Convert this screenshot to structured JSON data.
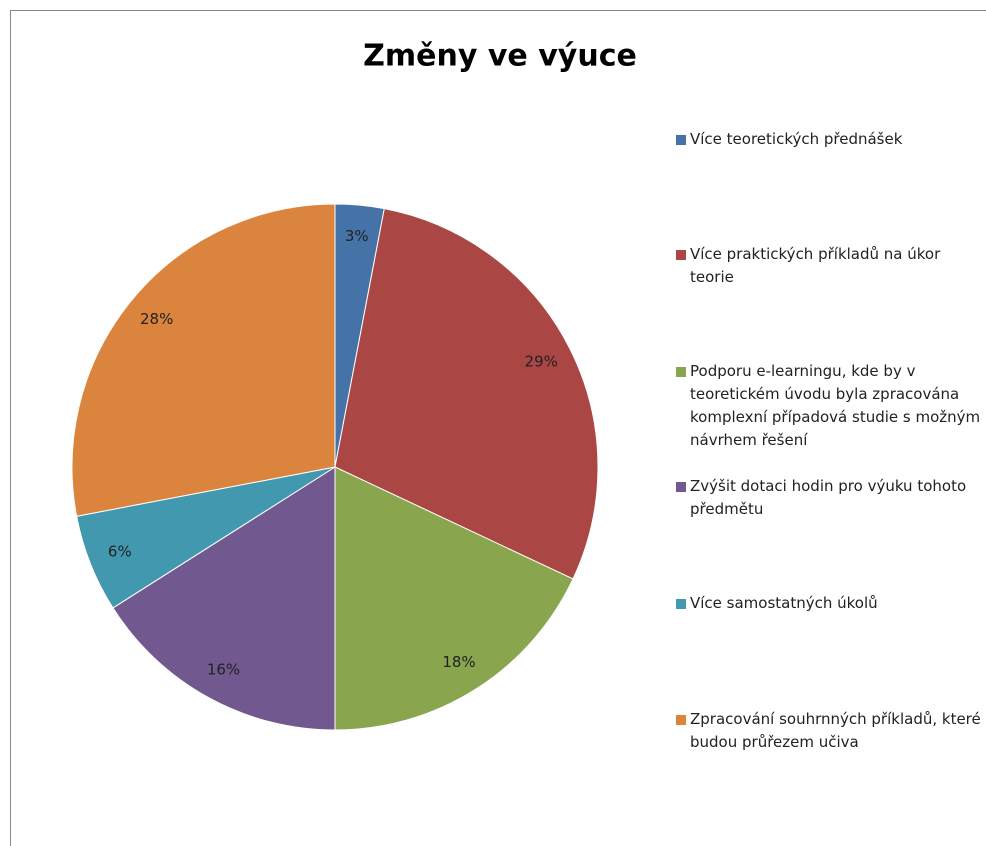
{
  "chart_data": {
    "type": "pie",
    "title": "Změny ve výuce",
    "categories": [
      "Více teoretických přednášek",
      "Více praktických příkladů na úkor teorie",
      "Podporu e-learningu, kde by v teoretickém úvodu byla zpracována komplexní případová studie s možným návrhem řešení",
      "Zvýšit dotaci hodin pro výuku tohoto předmětu",
      "Více samostatných úkolů",
      "Zpracování souhrnných příkladů, které budou průřezem učiva"
    ],
    "values": [
      3,
      29,
      18,
      16,
      6,
      28
    ],
    "value_labels": [
      "3%",
      "29%",
      "18%",
      "16%",
      "6%",
      "28%"
    ],
    "colors": [
      "#4572a7",
      "#aa4643",
      "#89a54e",
      "#71588f",
      "#4198af",
      "#db843d"
    ],
    "legend": "right"
  }
}
